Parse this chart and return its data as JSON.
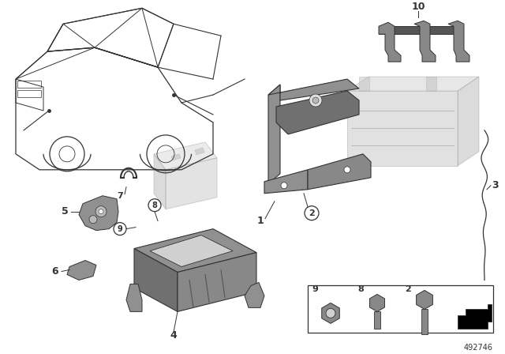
{
  "bg_color": "#ffffff",
  "diagram_number": "492746",
  "line_color": "#333333",
  "dark_gray": "#555555",
  "mid_gray": "#888888",
  "light_gray": "#bbbbbb",
  "ghost_gray": "#cccccc",
  "part_gray": "#909090",
  "part_dark": "#707070"
}
